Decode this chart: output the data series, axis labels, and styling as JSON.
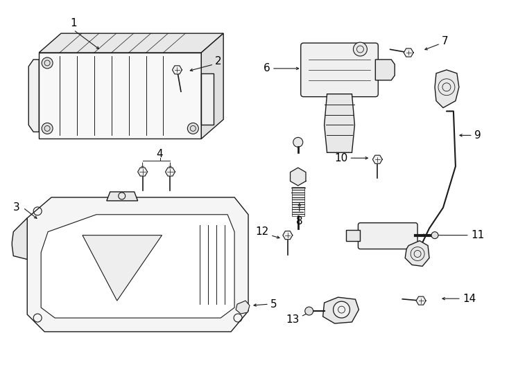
{
  "bg_color": "#ffffff",
  "line_color": "#1a1a1a",
  "text_color": "#000000",
  "figsize": [
    7.34,
    5.4
  ],
  "dpi": 100,
  "border_color": "#cccccc"
}
